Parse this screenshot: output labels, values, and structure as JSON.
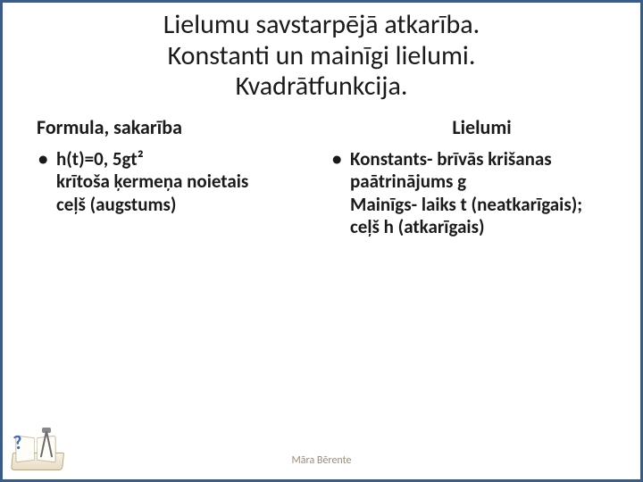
{
  "colors": {
    "border": "#385d8a",
    "text": "#1a1a1a",
    "footer": "#9a8d7a",
    "qmark": "#3f6fb3"
  },
  "title": {
    "line1": "Lielumu savstarpējā atkarība.",
    "line2": "Konstanti un mainīgi lielumi.",
    "line3": "Kvadrātfunkcija."
  },
  "left": {
    "heading": "Formula, sakarība",
    "bullet1_line1": "h(t)=0, 5gt²",
    "bullet1_line2": "krītoša ķermeņa noietais",
    "bullet1_line3": "ceļš (augstums)"
  },
  "right": {
    "heading": "Lielumi",
    "bullet1_line1": "Konstants- brīvās krišanas",
    "bullet1_line2": "paātrinājums g",
    "bullet1_line3": "Mainīgs- laiks t (neatkarīgais);",
    "bullet1_line4": "ceļš h (atkarīgais)"
  },
  "footer": {
    "author": "Māra Bērente"
  }
}
